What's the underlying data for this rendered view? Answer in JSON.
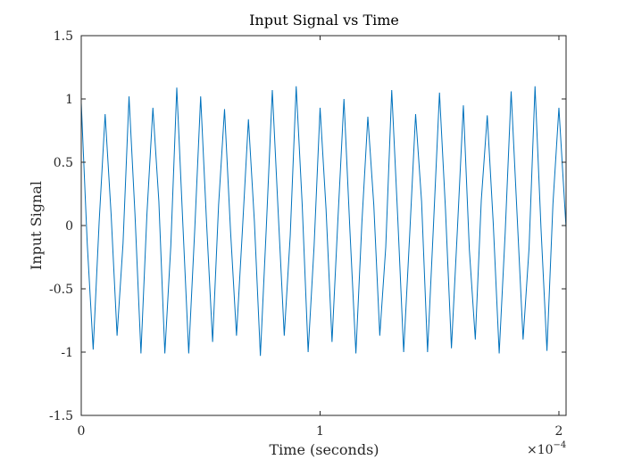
{
  "chart_data": {
    "type": "line",
    "title": "Input Signal vs Time",
    "xlabel": "Time (seconds)",
    "ylabel": "Input Signal",
    "x_exponent_label": "×10",
    "x_exponent_power": "−4",
    "xlim": [
      0,
      0.000203
    ],
    "ylim": [
      -1.5,
      1.5
    ],
    "x_ticks": [
      0,
      0.0001,
      0.0002
    ],
    "x_tick_labels": [
      "0",
      "1",
      "2"
    ],
    "y_ticks": [
      -1.5,
      -1,
      -0.5,
      0,
      0.5,
      1,
      1.5
    ],
    "y_tick_labels": [
      "-1.5",
      "-1",
      "-0.5",
      "0",
      "0.5",
      "1",
      "1.5"
    ],
    "grid": false,
    "box": true,
    "series": [
      {
        "color": "#0072BD",
        "x": [
          0,
          2.5e-06,
          5e-06,
          7.5e-06,
          1e-05,
          1.25e-05,
          1.5e-05,
          1.75e-05,
          2e-05,
          2.25e-05,
          2.5e-05,
          2.75e-05,
          3e-05,
          3.25e-05,
          3.5e-05,
          3.75e-05,
          4e-05,
          4.25e-05,
          4.5e-05,
          4.75e-05,
          5e-05,
          5.25e-05,
          5.5e-05,
          5.75e-05,
          6e-05,
          6.25e-05,
          6.5e-05,
          6.75e-05,
          7e-05,
          7.25e-05,
          7.5e-05,
          7.75e-05,
          8e-05,
          8.25e-05,
          8.5e-05,
          8.75e-05,
          9e-05,
          9.25e-05,
          9.5e-05,
          9.75e-05,
          0.0001,
          0.0001025,
          0.000105,
          0.0001075,
          0.00011,
          0.0001125,
          0.000115,
          0.0001175,
          0.00012,
          0.0001225,
          0.000125,
          0.0001275,
          0.00013,
          0.0001325,
          0.000135,
          0.0001375,
          0.00014,
          0.0001425,
          0.000145,
          0.0001475,
          0.00015,
          0.0001525,
          0.000155,
          0.0001575,
          0.00016,
          0.0001625,
          0.000165,
          0.0001675,
          0.00017,
          0.0001725,
          0.000175,
          0.0001775,
          0.00018,
          0.0001825,
          0.000185,
          0.0001875,
          0.00019,
          0.0001925,
          0.000195,
          0.0001975,
          0.0002,
          0.000203
        ],
        "y": [
          0.97,
          -0.14,
          -0.98,
          0.03,
          0.88,
          0.09,
          -0.87,
          -0.14,
          1.02,
          0.09,
          -1.01,
          0.09,
          0.93,
          0.19,
          -1.01,
          -0.16,
          1.09,
          0.03,
          -1.01,
          -0.04,
          1.02,
          0.01,
          -0.92,
          0.16,
          0.92,
          -0.04,
          -0.87,
          -0.03,
          0.84,
          0.03,
          -1.03,
          -0.01,
          1.07,
          0.09,
          -0.87,
          -0.08,
          1.1,
          0.17,
          -1.0,
          -0.16,
          0.93,
          0.13,
          -0.92,
          0.06,
          1.0,
          -0.04,
          -1.01,
          0.02,
          0.86,
          0.16,
          -0.87,
          -0.17,
          1.07,
          0.07,
          -1.0,
          -0.08,
          0.88,
          0.19,
          -1.0,
          0.01,
          1.05,
          0.13,
          -0.97,
          -0.03,
          0.95,
          -0.19,
          -0.9,
          0.2,
          0.87,
          0.02,
          -1.01,
          -0.06,
          1.06,
          0.08,
          -0.9,
          -0.18,
          1.1,
          -0.02,
          -0.99,
          0.17,
          0.93,
          -0.02
        ]
      }
    ]
  }
}
